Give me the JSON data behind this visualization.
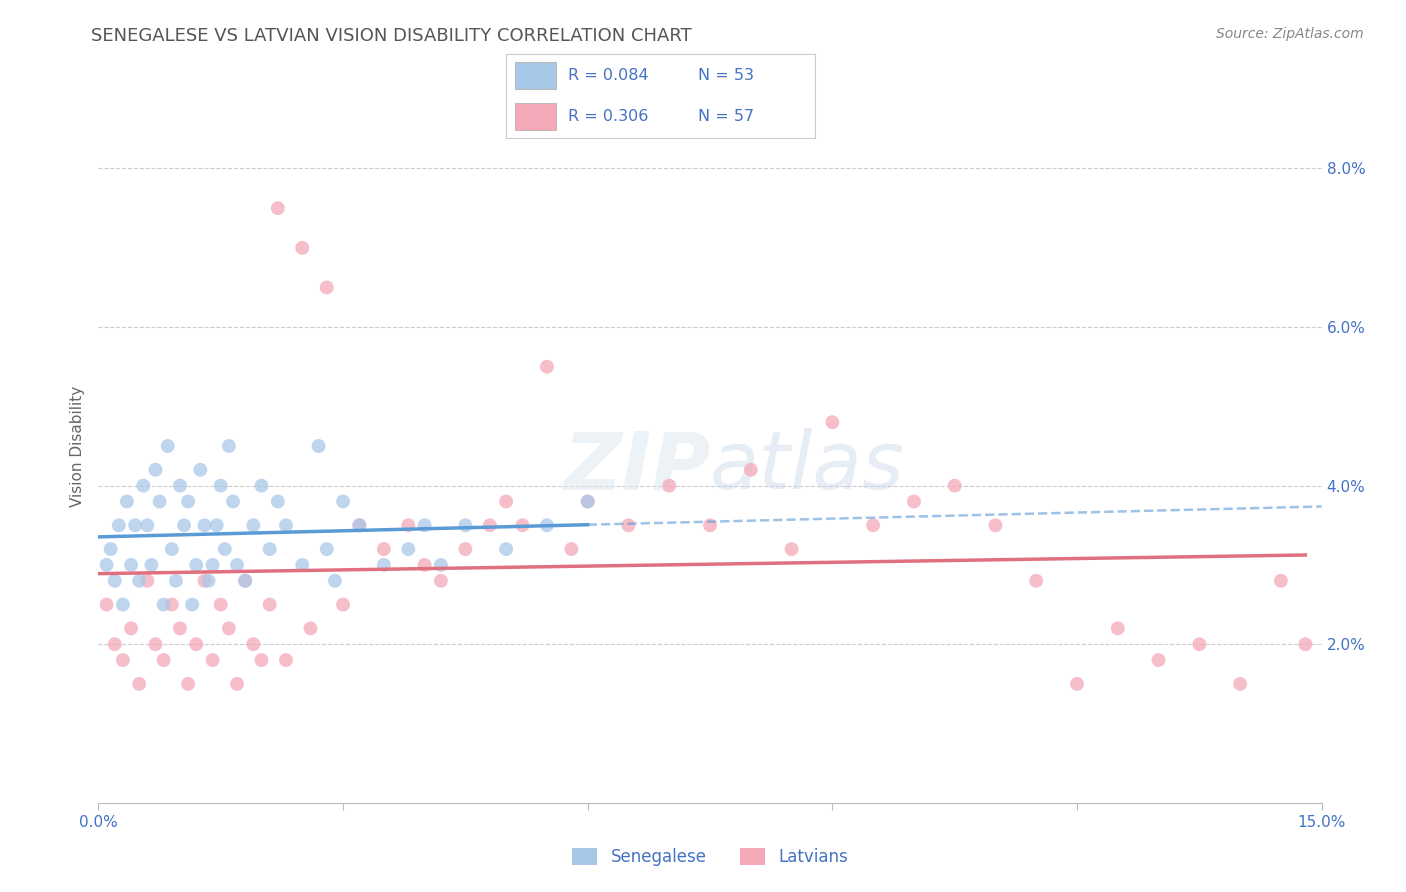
{
  "title": "SENEGALESE VS LATVIAN VISION DISABILITY CORRELATION CHART",
  "source": "Source: ZipAtlas.com",
  "ylabel": "Vision Disability",
  "xlim": [
    0.0,
    15.0
  ],
  "ylim": [
    0.0,
    9.0
  ],
  "senegalese_R": 0.084,
  "senegalese_N": 53,
  "latvian_R": 0.306,
  "latvian_N": 57,
  "senegalese_color": "#a8c8e8",
  "latvian_color": "#f4a8b8",
  "senegalese_line_color": "#5b9bd5",
  "latvian_line_color": "#e07080",
  "background_color": "#ffffff",
  "grid_color": "#cccccc",
  "title_color": "#555555",
  "axis_color": "#4472c4",
  "senegalese_x": [
    0.1,
    0.15,
    0.2,
    0.25,
    0.3,
    0.35,
    0.4,
    0.45,
    0.5,
    0.55,
    0.6,
    0.65,
    0.7,
    0.75,
    0.8,
    0.85,
    0.9,
    0.95,
    1.0,
    1.05,
    1.1,
    1.15,
    1.2,
    1.25,
    1.3,
    1.35,
    1.4,
    1.45,
    1.5,
    1.55,
    1.6,
    1.65,
    1.7,
    1.8,
    1.9,
    2.0,
    2.1,
    2.2,
    2.3,
    2.5,
    2.7,
    2.8,
    2.9,
    3.0,
    3.2,
    3.5,
    3.8,
    4.0,
    4.2,
    4.5,
    5.0,
    5.5,
    6.0
  ],
  "senegalese_y": [
    3.0,
    3.2,
    2.8,
    3.5,
    2.5,
    3.8,
    3.0,
    3.5,
    2.8,
    4.0,
    3.5,
    3.0,
    4.2,
    3.8,
    2.5,
    4.5,
    3.2,
    2.8,
    4.0,
    3.5,
    3.8,
    2.5,
    3.0,
    4.2,
    3.5,
    2.8,
    3.0,
    3.5,
    4.0,
    3.2,
    4.5,
    3.8,
    3.0,
    2.8,
    3.5,
    4.0,
    3.2,
    3.8,
    3.5,
    3.0,
    4.5,
    3.2,
    2.8,
    3.8,
    3.5,
    3.0,
    3.2,
    3.5,
    3.0,
    3.5,
    3.2,
    3.5,
    3.8
  ],
  "latvian_x": [
    0.1,
    0.2,
    0.3,
    0.4,
    0.5,
    0.6,
    0.7,
    0.8,
    0.9,
    1.0,
    1.1,
    1.2,
    1.3,
    1.4,
    1.5,
    1.6,
    1.7,
    1.8,
    1.9,
    2.0,
    2.1,
    2.2,
    2.3,
    2.5,
    2.6,
    2.8,
    3.0,
    3.2,
    3.5,
    3.8,
    4.0,
    4.2,
    4.5,
    4.8,
    5.0,
    5.2,
    5.5,
    5.8,
    6.0,
    6.5,
    7.0,
    7.5,
    8.0,
    8.5,
    9.0,
    9.5,
    10.0,
    10.5,
    11.0,
    11.5,
    12.0,
    12.5,
    13.0,
    13.5,
    14.0,
    14.5,
    14.8
  ],
  "latvian_y": [
    2.5,
    2.0,
    1.8,
    2.2,
    1.5,
    2.8,
    2.0,
    1.8,
    2.5,
    2.2,
    1.5,
    2.0,
    2.8,
    1.8,
    2.5,
    2.2,
    1.5,
    2.8,
    2.0,
    1.8,
    2.5,
    7.5,
    1.8,
    7.0,
    2.2,
    6.5,
    2.5,
    3.5,
    3.2,
    3.5,
    3.0,
    2.8,
    3.2,
    3.5,
    3.8,
    3.5,
    5.5,
    3.2,
    3.8,
    3.5,
    4.0,
    3.5,
    4.2,
    3.2,
    4.8,
    3.5,
    3.8,
    4.0,
    3.5,
    2.8,
    1.5,
    2.2,
    1.8,
    2.0,
    1.5,
    2.8,
    2.0
  ]
}
